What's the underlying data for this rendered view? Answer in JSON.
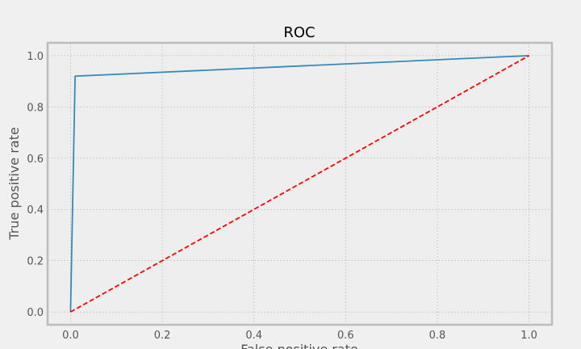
{
  "chart_data": {
    "type": "line",
    "title": "ROC",
    "xlabel": "False positive rate",
    "ylabel": "True positive rate",
    "xlim": [
      -0.05,
      1.05
    ],
    "ylim": [
      -0.05,
      1.05
    ],
    "xticks": [
      0.0,
      0.2,
      0.4,
      0.6,
      0.8,
      1.0
    ],
    "yticks": [
      0.0,
      0.2,
      0.4,
      0.6,
      0.8,
      1.0
    ],
    "xtick_labels": [
      "0.0",
      "0.2",
      "0.4",
      "0.6",
      "0.8",
      "1.0"
    ],
    "ytick_labels": [
      "0.0",
      "0.2",
      "0.4",
      "0.6",
      "0.8",
      "1.0"
    ],
    "grid": true,
    "series": [
      {
        "x": [
          0.0,
          0.01,
          1.0
        ],
        "y": [
          0.0,
          0.92,
          1.0
        ],
        "color": "#348abd",
        "style": "solid"
      },
      {
        "x": [
          0.0,
          1.0
        ],
        "y": [
          0.0,
          1.0
        ],
        "color": "#ff0000",
        "style": "dashed"
      }
    ]
  }
}
